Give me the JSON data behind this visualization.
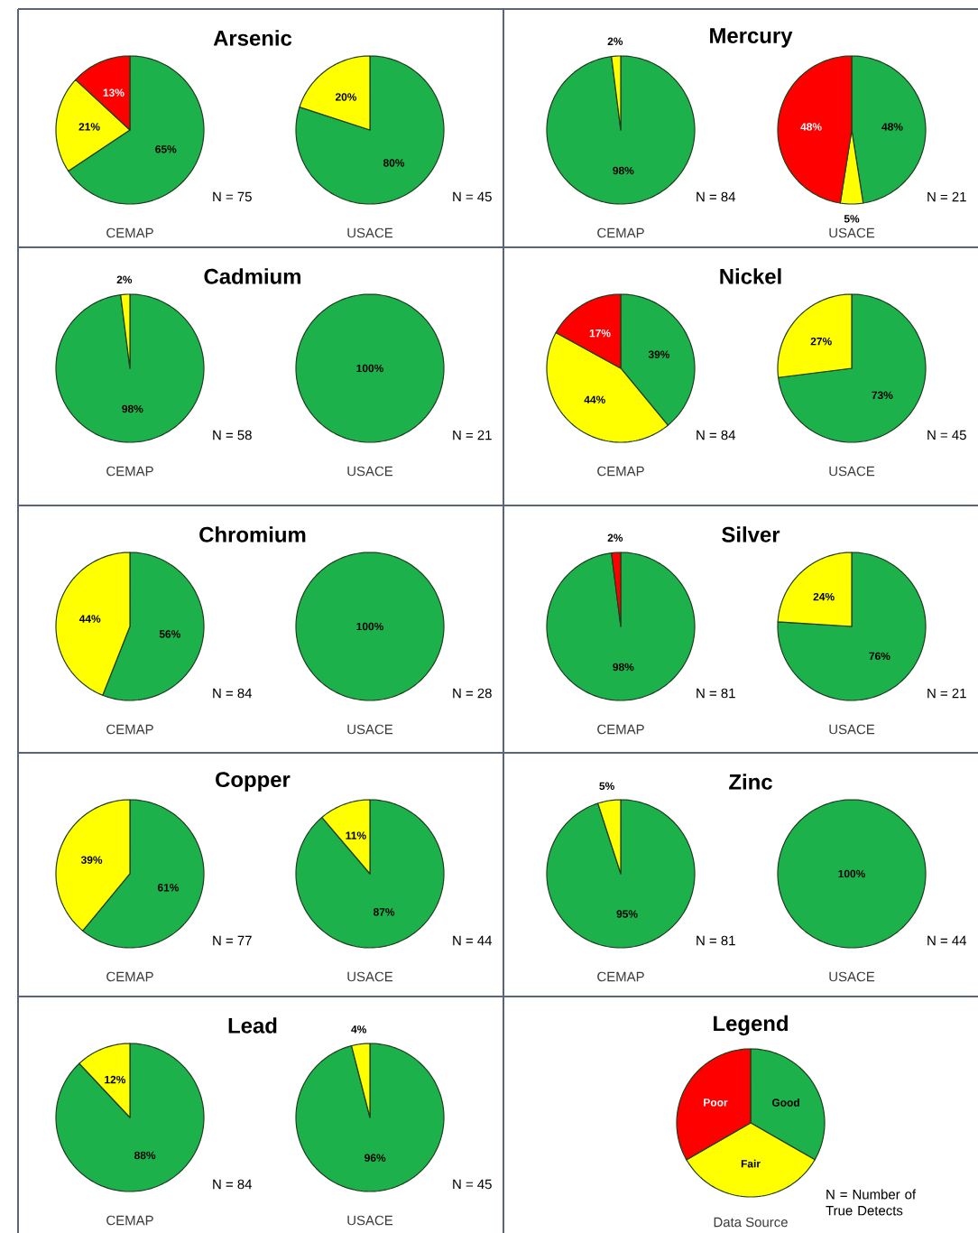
{
  "chart_data": [
    {
      "type": "pie",
      "title": "Arsenic",
      "xlabel": "CEMAP",
      "categories": [
        null,
        null,
        null
      ],
      "values": [
        65,
        21,
        13
      ],
      "colors": [
        "#1db14b",
        "#ffff00",
        "#ff0000"
      ],
      "value_labels": [
        "65%",
        "21%",
        "13%"
      ],
      "annotations": [
        "N = 75"
      ]
    },
    {
      "type": "pie",
      "xlabel": "USACE",
      "categories": [
        null,
        null
      ],
      "values": [
        80,
        20
      ],
      "colors": [
        "#1db14b",
        "#ffff00"
      ],
      "value_labels": [
        "80%",
        "20%"
      ],
      "annotations": [
        "N = 45"
      ]
    },
    {
      "type": "pie",
      "title": "Mercury",
      "xlabel": "CEMAP",
      "categories": [
        null,
        null
      ],
      "values": [
        98,
        2
      ],
      "colors": [
        "#1db14b",
        "#ffff00"
      ],
      "value_labels": [
        "98%",
        "2%"
      ],
      "annotations": [
        "N = 84"
      ]
    },
    {
      "type": "pie",
      "xlabel": "USACE",
      "categories": [
        null,
        null,
        null
      ],
      "values": [
        48,
        5,
        48
      ],
      "colors": [
        "#1db14b",
        "#ffff00",
        "#ff0000"
      ],
      "value_labels": [
        "48%",
        "5%",
        "48%"
      ],
      "annotations": [
        "N = 21"
      ]
    },
    {
      "type": "pie",
      "title": "Cadmium",
      "xlabel": "CEMAP",
      "categories": [
        null,
        null
      ],
      "values": [
        98,
        2
      ],
      "colors": [
        "#1db14b",
        "#ffff00"
      ],
      "value_labels": [
        "98%",
        "2%"
      ],
      "annotations": [
        "N = 58"
      ]
    },
    {
      "type": "pie",
      "xlabel": "USACE",
      "categories": [
        null
      ],
      "values": [
        100
      ],
      "colors": [
        "#1db14b"
      ],
      "value_labels": [
        "100%"
      ],
      "annotations": [
        "N = 21"
      ]
    },
    {
      "type": "pie",
      "title": "Nickel",
      "xlabel": "CEMAP",
      "categories": [
        null,
        null,
        null
      ],
      "values": [
        39,
        44,
        17
      ],
      "colors": [
        "#1db14b",
        "#ffff00",
        "#ff0000"
      ],
      "value_labels": [
        "39%",
        "44%",
        "17%"
      ],
      "annotations": [
        "N = 84"
      ]
    },
    {
      "type": "pie",
      "xlabel": "USACE",
      "categories": [
        null,
        null
      ],
      "values": [
        73,
        27
      ],
      "colors": [
        "#1db14b",
        "#ffff00"
      ],
      "value_labels": [
        "73%",
        "27%"
      ],
      "annotations": [
        "N = 45"
      ]
    },
    {
      "type": "pie",
      "title": "Chromium",
      "xlabel": "CEMAP",
      "categories": [
        null,
        null
      ],
      "values": [
        56,
        44
      ],
      "colors": [
        "#1db14b",
        "#ffff00"
      ],
      "value_labels": [
        "56%",
        "44%"
      ],
      "annotations": [
        "N = 84"
      ]
    },
    {
      "type": "pie",
      "xlabel": "USACE",
      "categories": [
        null
      ],
      "values": [
        100
      ],
      "colors": [
        "#1db14b"
      ],
      "value_labels": [
        "100%"
      ],
      "annotations": [
        "N = 28"
      ]
    },
    {
      "type": "pie",
      "title": "Silver",
      "xlabel": "CEMAP",
      "categories": [
        null,
        null
      ],
      "values": [
        98,
        2
      ],
      "colors": [
        "#1db14b",
        "#ff0000"
      ],
      "value_labels": [
        "98%",
        "2%"
      ],
      "annotations": [
        "N = 81"
      ]
    },
    {
      "type": "pie",
      "xlabel": "USACE",
      "categories": [
        null,
        null
      ],
      "values": [
        76,
        24
      ],
      "colors": [
        "#1db14b",
        "#ffff00"
      ],
      "value_labels": [
        "76%",
        "24%"
      ],
      "annotations": [
        "N = 21"
      ]
    },
    {
      "type": "pie",
      "title": "Copper",
      "xlabel": "CEMAP",
      "categories": [
        null,
        null
      ],
      "values": [
        61,
        39
      ],
      "colors": [
        "#1db14b",
        "#ffff00"
      ],
      "value_labels": [
        "61%",
        "39%"
      ],
      "annotations": [
        "N = 77"
      ]
    },
    {
      "type": "pie",
      "xlabel": "USACE",
      "categories": [
        null,
        null
      ],
      "values": [
        87,
        11
      ],
      "colors": [
        "#1db14b",
        "#ffff00"
      ],
      "value_labels": [
        "87%",
        "11%"
      ],
      "annotations": [
        "N = 44"
      ]
    },
    {
      "type": "pie",
      "title": "Zinc",
      "xlabel": "CEMAP",
      "categories": [
        null,
        null
      ],
      "values": [
        95,
        5
      ],
      "colors": [
        "#1db14b",
        "#ffff00"
      ],
      "value_labels": [
        "95%",
        "5%"
      ],
      "annotations": [
        "N = 81"
      ]
    },
    {
      "type": "pie",
      "xlabel": "USACE",
      "categories": [
        null
      ],
      "values": [
        100
      ],
      "colors": [
        "#1db14b"
      ],
      "value_labels": [
        "100%"
      ],
      "annotations": [
        "N = 44"
      ]
    },
    {
      "type": "pie",
      "title": "Lead",
      "xlabel": "CEMAP",
      "categories": [
        null,
        null
      ],
      "values": [
        88,
        12
      ],
      "colors": [
        "#1db14b",
        "#ffff00"
      ],
      "value_labels": [
        "88%",
        "12%"
      ],
      "annotations": [
        "N = 84"
      ]
    },
    {
      "type": "pie",
      "xlabel": "USACE",
      "categories": [
        null,
        null
      ],
      "values": [
        96,
        4
      ],
      "colors": [
        "#1db14b",
        "#ffff00"
      ],
      "value_labels": [
        "96%",
        "4%"
      ],
      "annotations": [
        "N = 45"
      ]
    },
    {
      "type": "pie",
      "title": "Legend",
      "xlabel": "Data Source",
      "categories": [
        "Good",
        "Fair",
        "Poor"
      ],
      "values": [
        33.3,
        33.4,
        33.3
      ],
      "colors": [
        "#1db14b",
        "#ffff00",
        "#ff0000"
      ],
      "annotations": [
        "N = Number of True Detects"
      ]
    }
  ]
}
